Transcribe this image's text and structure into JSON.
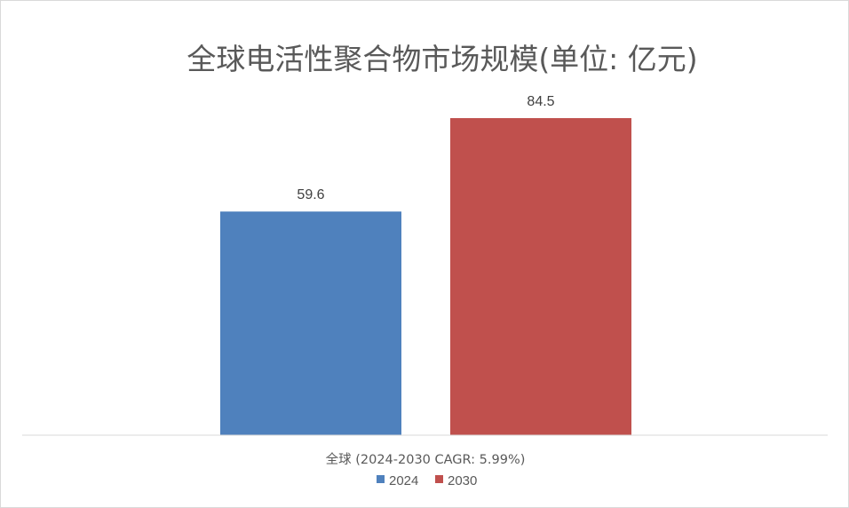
{
  "chart_data": {
    "type": "bar",
    "title": "全球电活性聚合物市场规模(单位: 亿元)",
    "categories": [
      "全球 (2024-2030 CAGR: 5.99%)"
    ],
    "series": [
      {
        "name": "2024",
        "values": [
          59.6
        ],
        "color": "#4f81bd"
      },
      {
        "name": "2030",
        "values": [
          84.5
        ],
        "color": "#c0504d"
      }
    ],
    "ylim": [
      0,
      90
    ],
    "grid": false,
    "legend": "bottom",
    "data_labels": true
  }
}
